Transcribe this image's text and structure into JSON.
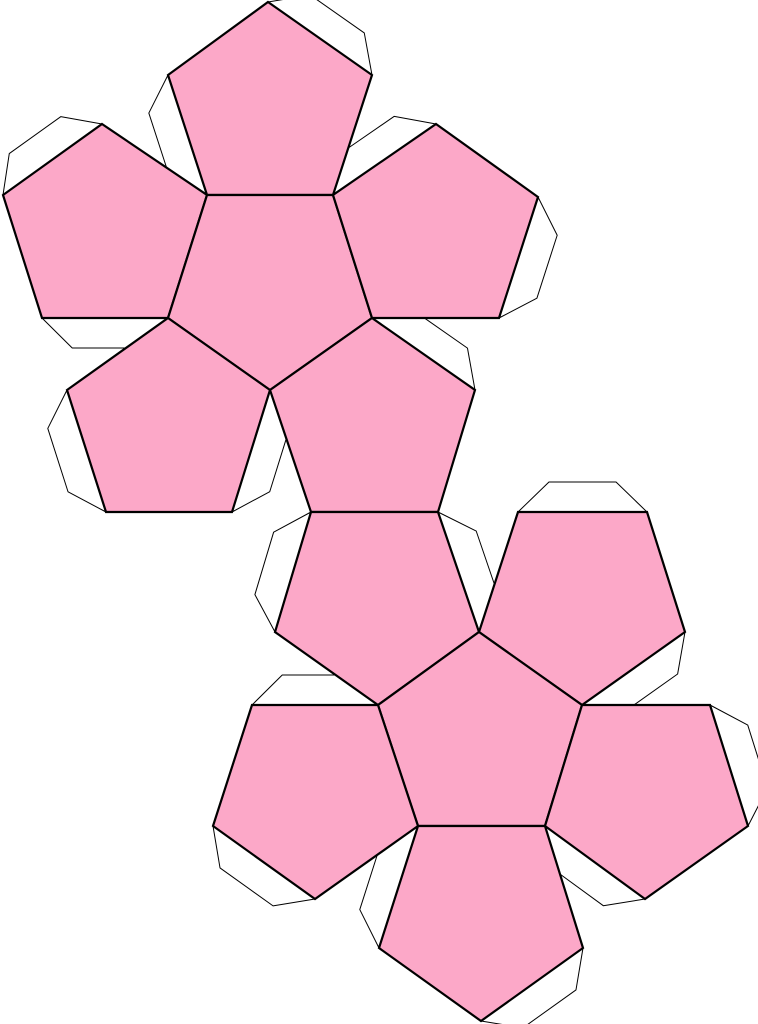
{
  "diagram": {
    "subject": "dodecahedron-net",
    "face_count": 12,
    "tab_count": 18,
    "colors": {
      "face_fill": "#fca8c8",
      "face_stroke": "#000000",
      "tab_fill": "#ffffff",
      "tab_stroke": "#000000",
      "background": "#ffffff"
    }
  }
}
